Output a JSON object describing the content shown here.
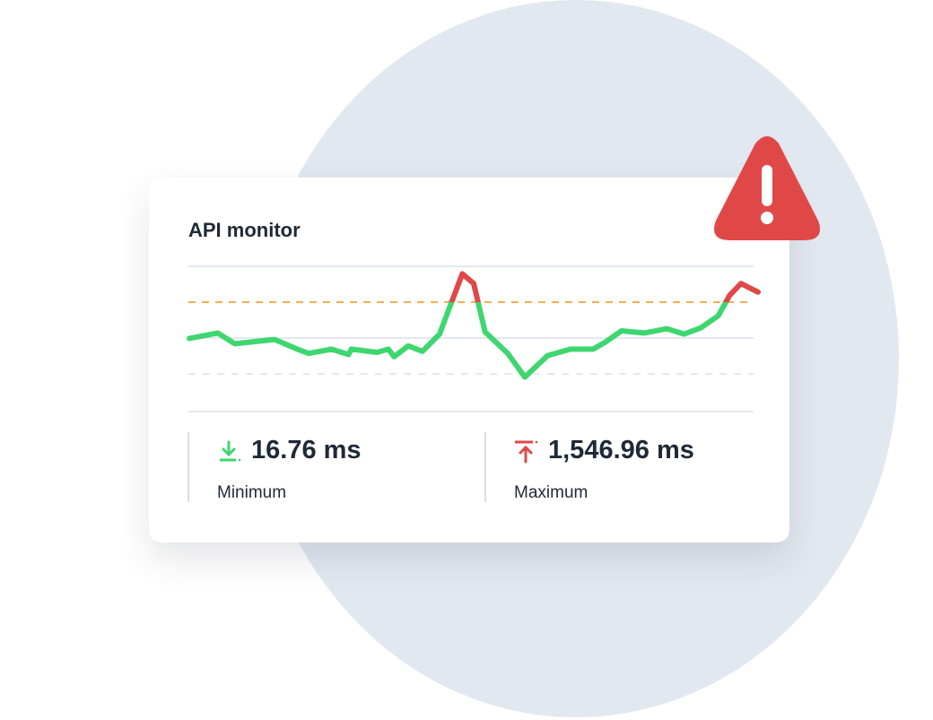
{
  "card": {
    "title": "API monitor",
    "stats": [
      {
        "value": "16.76 ms",
        "label": "Minimum",
        "icon": "arrow-down-to-line-icon",
        "color": "#3ed66f"
      },
      {
        "value": "1,546.96 ms",
        "label": "Maximum",
        "icon": "arrow-up-to-line-icon",
        "color": "#e04848"
      }
    ]
  },
  "alert": {
    "icon": "warning-triangle-icon",
    "color": "#e04848"
  },
  "chart_data": {
    "type": "line",
    "title": "",
    "xlabel": "",
    "ylabel": "",
    "grid": true,
    "threshold": 66.7,
    "colors": {
      "normal": "#3ed66f",
      "above_threshold": "#e04848",
      "threshold_line": "#f6ad55"
    },
    "x": [
      0,
      5,
      8,
      15,
      19,
      21,
      25,
      28,
      28.5,
      33,
      35,
      36,
      38.5,
      41,
      44,
      48,
      50,
      52,
      56,
      59,
      63,
      67,
      71,
      73,
      76,
      80,
      84,
      87,
      90,
      93,
      95,
      97,
      100
    ],
    "y": [
      33,
      38,
      28,
      32,
      23,
      19,
      23,
      18,
      23,
      20,
      23,
      16,
      26,
      21,
      37,
      93,
      84,
      39,
      19,
      -3,
      17,
      23,
      23,
      29,
      40,
      38,
      42,
      37,
      43,
      54,
      73,
      84,
      76
    ]
  }
}
